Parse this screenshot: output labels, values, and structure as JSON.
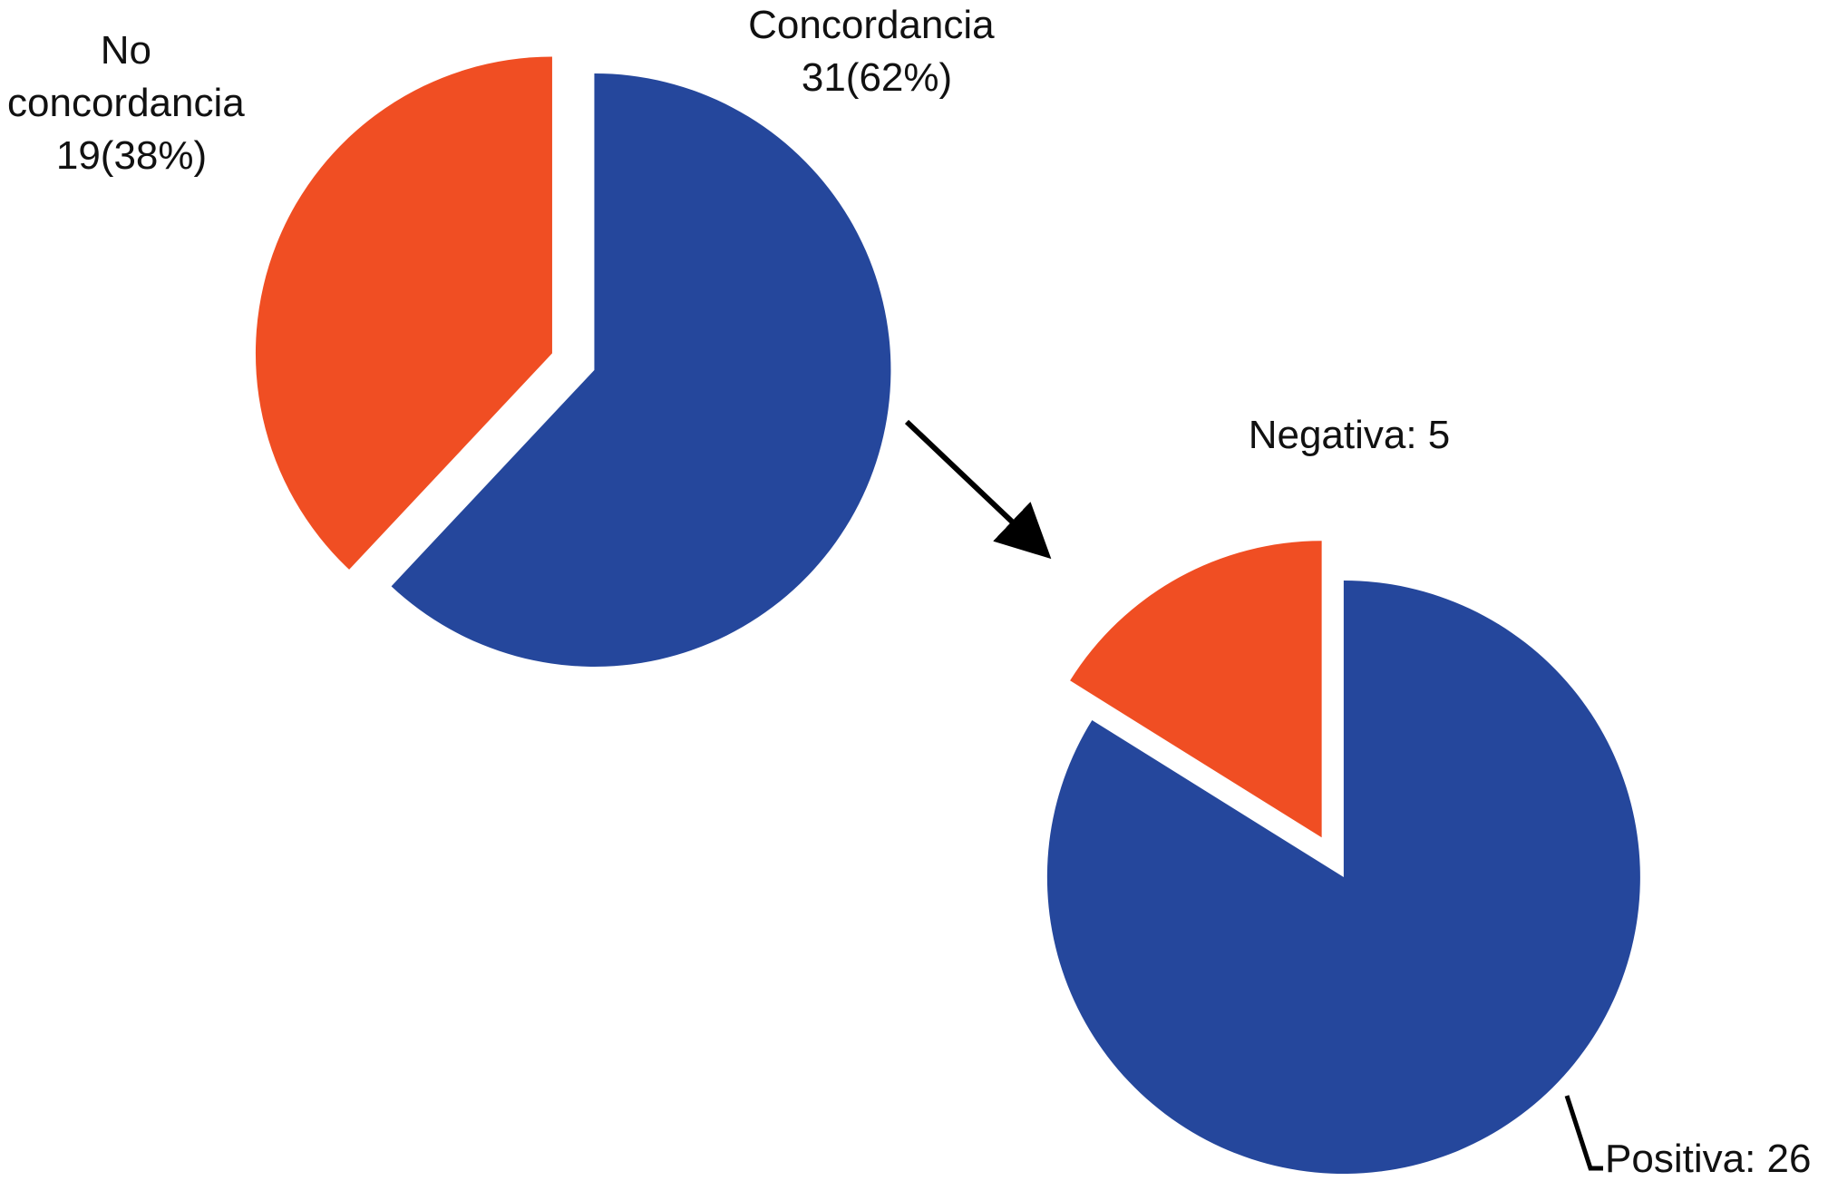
{
  "chart_data": [
    {
      "type": "pie",
      "slices": [
        {
          "label_lines": [
            "Concordancia",
            "31(62%)"
          ],
          "value": 31,
          "percent": 62,
          "color": "#25479c"
        },
        {
          "label_lines": [
            "No",
            "concordancia",
            "19(38%)"
          ],
          "value": 19,
          "percent": 38,
          "color": "#f04e23"
        }
      ]
    },
    {
      "type": "pie",
      "slices": [
        {
          "label_lines": [
            "Positiva: 26"
          ],
          "value": 26,
          "color": "#25479c"
        },
        {
          "label_lines": [
            "Negativa: 5"
          ],
          "value": 5,
          "color": "#f04e23"
        }
      ]
    }
  ]
}
